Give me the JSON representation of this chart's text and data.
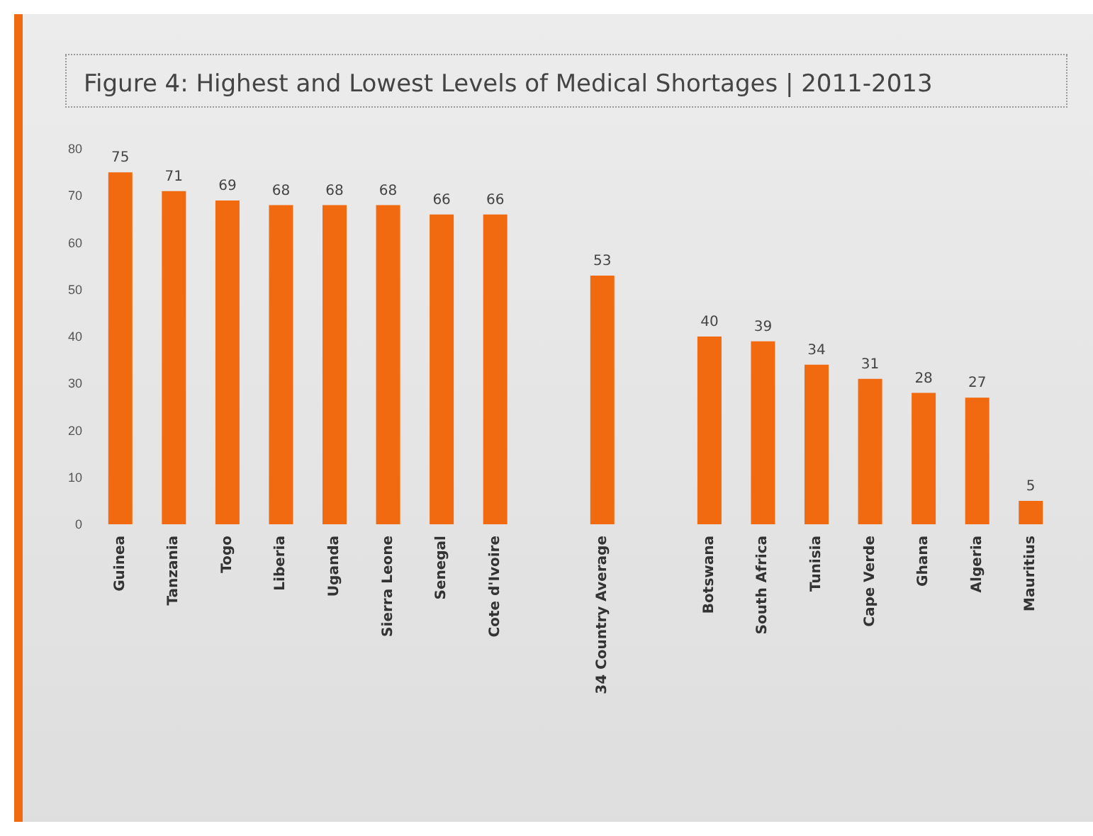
{
  "chart_data": {
    "type": "bar",
    "title": "Figure 4: Highest and Lowest Levels of Medical Shortages | 2011-2013",
    "categories": [
      "Guinea",
      "Tanzania",
      "Togo",
      "Liberia",
      "Uganda",
      "Sierra Leone",
      "Senegal",
      "Cote d'Ivoire",
      null,
      "34 Country Average",
      null,
      "Botswana",
      "South Africa",
      "Tunisia",
      "Cape Verde",
      "Ghana",
      "Algeria",
      "Mauritius"
    ],
    "values": [
      75,
      71,
      69,
      68,
      68,
      68,
      66,
      66,
      null,
      53,
      null,
      40,
      39,
      34,
      31,
      28,
      27,
      5
    ],
    "color": "#f26a10",
    "ylim": [
      0,
      80
    ],
    "yticks": [
      0,
      10,
      20,
      30,
      40,
      50,
      60,
      70,
      80
    ],
    "data_labels": true,
    "grid": false
  }
}
